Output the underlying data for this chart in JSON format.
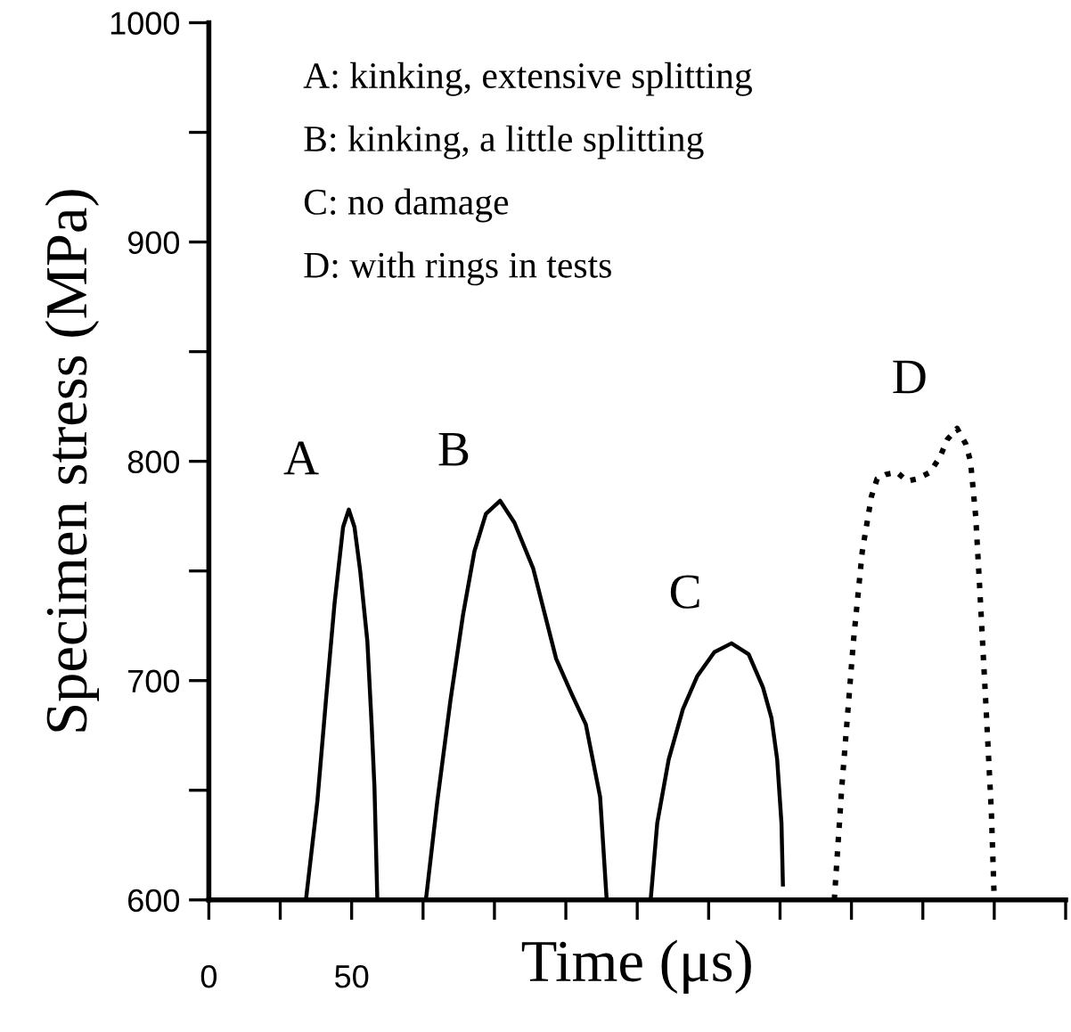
{
  "chart_data": {
    "type": "line",
    "xlabel": "Time (μs)",
    "ylabel": "Specimen stress (MPa)",
    "xlim": [
      0,
      300
    ],
    "ylim": [
      600,
      1000
    ],
    "xticks": [
      0,
      50,
      {
        "value": 25,
        "label": null
      },
      {
        "value": 75,
        "label": null
      },
      {
        "value": 100,
        "label": null
      },
      {
        "value": 125,
        "label": null
      },
      {
        "value": 150,
        "label": null
      },
      {
        "value": 175,
        "label": null
      },
      {
        "value": 200,
        "label": null
      },
      {
        "value": 225,
        "label": null
      },
      {
        "value": 250,
        "label": null
      },
      {
        "value": 275,
        "label": null
      },
      {
        "value": 300,
        "label": null
      }
    ],
    "yticks": [
      600,
      700,
      800,
      900,
      1000,
      {
        "value": 650,
        "label": null
      },
      {
        "value": 750,
        "label": null
      },
      {
        "value": 850,
        "label": null
      },
      {
        "value": 950,
        "label": null
      }
    ],
    "grid": false,
    "legend": false,
    "marker": "none",
    "annotations": [
      "A: kinking, extensive splitting",
      "B: kinking, a little splitting",
      "C: no damage",
      "D: with rings in tests"
    ],
    "series": [
      {
        "name": "A",
        "color": "#000000",
        "line_style": "solid",
        "x": [
          34,
          38,
          41,
          44,
          47,
          49,
          51,
          53,
          55.5,
          57,
          58,
          59
        ],
        "values": [
          600,
          645,
          691,
          735,
          770,
          778,
          770,
          750,
          718,
          680,
          651,
          600
        ]
      },
      {
        "name": "B",
        "color": "#000000",
        "line_style": "solid",
        "x": [
          76,
          80,
          84.6,
          89,
          93,
          97,
          102,
          107,
          113.6,
          121.6,
          127,
          132,
          137,
          139.3
        ],
        "values": [
          600,
          645,
          691,
          730,
          759,
          776,
          782,
          772,
          751,
          710,
          694,
          680,
          647,
          600
        ]
      },
      {
        "name": "C",
        "color": "#000000",
        "line_style": "solid",
        "x": [
          154.7,
          157,
          161,
          166,
          171,
          177,
          183,
          189,
          194,
          197,
          199,
          200.5,
          201
        ],
        "values": [
          600,
          635,
          664,
          687,
          702,
          713,
          717,
          712,
          697,
          683,
          664,
          635,
          607
        ]
      },
      {
        "name": "D",
        "color": "#000000",
        "line_style": "dotted",
        "x": [
          219,
          221.6,
          225.7,
          228.8,
          232,
          234,
          237,
          241,
          244.4,
          248,
          252.5,
          256,
          258.6,
          262,
          265,
          266.7,
          268.5,
          269.8,
          272,
          274,
          275
        ],
        "values": [
          600,
          651,
          718,
          759,
          784,
          792,
          794,
          795,
          791,
          792,
          795,
          802,
          810,
          815,
          808,
          800,
          775,
          745,
          691,
          640,
          600
        ]
      }
    ]
  }
}
